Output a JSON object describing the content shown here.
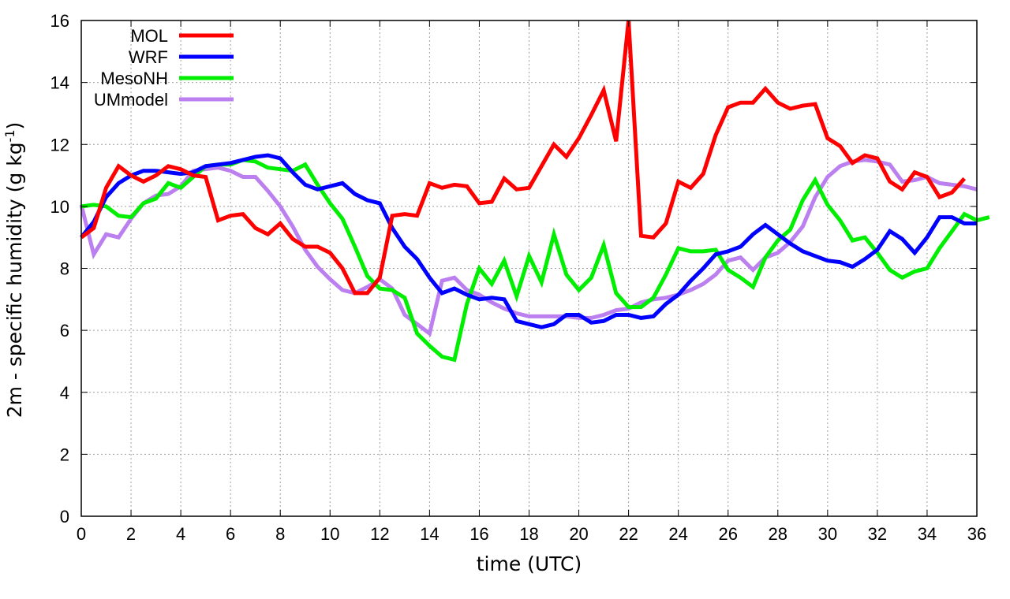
{
  "chart_data": {
    "type": "line",
    "xlabel": "time (UTC)",
    "ylabel": "2m - specific humidity (g kg",
    "ylabel_sup": "-1",
    "ylabel_close": ")",
    "xlim": [
      0,
      36
    ],
    "ylim": [
      0,
      16
    ],
    "x_ticks": [
      0,
      2,
      4,
      6,
      8,
      10,
      12,
      14,
      16,
      18,
      20,
      22,
      24,
      26,
      28,
      30,
      32,
      34,
      36
    ],
    "y_ticks": [
      0,
      2,
      4,
      6,
      8,
      10,
      12,
      14,
      16
    ],
    "grid": true,
    "legend_position": "top-left",
    "x_step": 0.5,
    "series": [
      {
        "name": "MOL",
        "color": "#ff0000",
        "values": [
          9.0,
          9.3,
          10.6,
          11.3,
          11.0,
          10.8,
          11.0,
          11.3,
          11.2,
          11.0,
          10.95,
          9.55,
          9.7,
          9.75,
          9.3,
          9.1,
          9.45,
          8.95,
          8.7,
          8.7,
          8.5,
          8.0,
          7.2,
          7.2,
          7.7,
          9.7,
          9.75,
          9.7,
          10.75,
          10.6,
          10.7,
          10.65,
          10.1,
          10.15,
          10.9,
          10.55,
          10.6,
          11.3,
          12.0,
          11.6,
          12.2,
          12.95,
          13.75,
          12.1,
          16.1,
          9.05,
          9.0,
          9.45,
          10.8,
          10.6,
          11.05,
          12.3,
          13.2,
          13.35,
          13.35,
          13.8,
          13.35,
          13.15,
          13.25,
          13.3,
          12.2,
          11.95,
          11.4,
          11.65,
          11.55,
          10.8,
          10.55,
          11.1,
          10.95,
          10.3,
          10.45,
          10.9
        ]
      },
      {
        "name": "WRF",
        "color": "#0000ff",
        "values": [
          9.0,
          9.5,
          10.3,
          10.75,
          11.0,
          11.15,
          11.15,
          11.1,
          11.05,
          11.1,
          11.3,
          11.35,
          11.4,
          11.5,
          11.6,
          11.65,
          11.55,
          11.1,
          10.7,
          10.55,
          10.65,
          10.75,
          10.4,
          10.2,
          10.1,
          9.3,
          8.7,
          8.3,
          7.7,
          7.2,
          7.35,
          7.15,
          7.0,
          7.05,
          7.0,
          6.3,
          6.2,
          6.1,
          6.2,
          6.5,
          6.5,
          6.25,
          6.3,
          6.5,
          6.5,
          6.4,
          6.45,
          6.85,
          7.15,
          7.6,
          8.0,
          8.45,
          8.55,
          8.7,
          9.1,
          9.4,
          9.1,
          8.8,
          8.55,
          8.4,
          8.25,
          8.2,
          8.05,
          8.3,
          8.6,
          9.2,
          8.95,
          8.5,
          9.0,
          9.65,
          9.65,
          9.45,
          9.45
        ]
      },
      {
        "name": "MesoNH",
        "color": "#00ee00",
        "values": [
          10.0,
          10.05,
          10.0,
          9.7,
          9.65,
          10.1,
          10.25,
          10.75,
          10.6,
          10.95,
          11.3,
          11.35,
          11.35,
          11.5,
          11.45,
          11.25,
          11.2,
          11.15,
          11.35,
          10.7,
          10.1,
          9.6,
          8.7,
          7.75,
          7.35,
          7.3,
          7.05,
          5.9,
          5.5,
          5.15,
          5.05,
          6.85,
          8.0,
          7.5,
          8.25,
          7.1,
          8.4,
          7.55,
          9.1,
          7.8,
          7.3,
          7.7,
          8.75,
          7.2,
          6.75,
          6.75,
          7.05,
          7.8,
          8.65,
          8.55,
          8.55,
          8.6,
          7.95,
          7.7,
          7.4,
          8.35,
          8.9,
          9.25,
          10.2,
          10.85,
          10.05,
          9.55,
          8.9,
          9.0,
          8.5,
          7.95,
          7.7,
          7.9,
          8.0,
          8.65,
          9.2,
          9.75,
          9.55,
          9.65
        ]
      },
      {
        "name": "UMmodel",
        "color": "#bb7ff0",
        "values": [
          10.05,
          8.45,
          9.1,
          9.0,
          9.6,
          10.1,
          10.35,
          10.4,
          10.65,
          11.15,
          11.2,
          11.25,
          11.15,
          10.95,
          10.95,
          10.5,
          10.0,
          9.35,
          8.6,
          8.05,
          7.65,
          7.3,
          7.2,
          7.4,
          7.65,
          7.35,
          6.5,
          6.2,
          5.9,
          7.6,
          7.7,
          7.3,
          7.15,
          6.9,
          6.7,
          6.55,
          6.45,
          6.45,
          6.45,
          6.45,
          6.4,
          6.4,
          6.5,
          6.65,
          6.7,
          6.9,
          7.0,
          7.05,
          7.15,
          7.3,
          7.5,
          7.8,
          8.25,
          8.35,
          7.95,
          8.35,
          8.5,
          8.85,
          9.35,
          10.3,
          10.95,
          11.3,
          11.45,
          11.5,
          11.45,
          11.35,
          10.8,
          10.85,
          10.95,
          10.75,
          10.7,
          10.65,
          10.55
        ]
      }
    ]
  }
}
